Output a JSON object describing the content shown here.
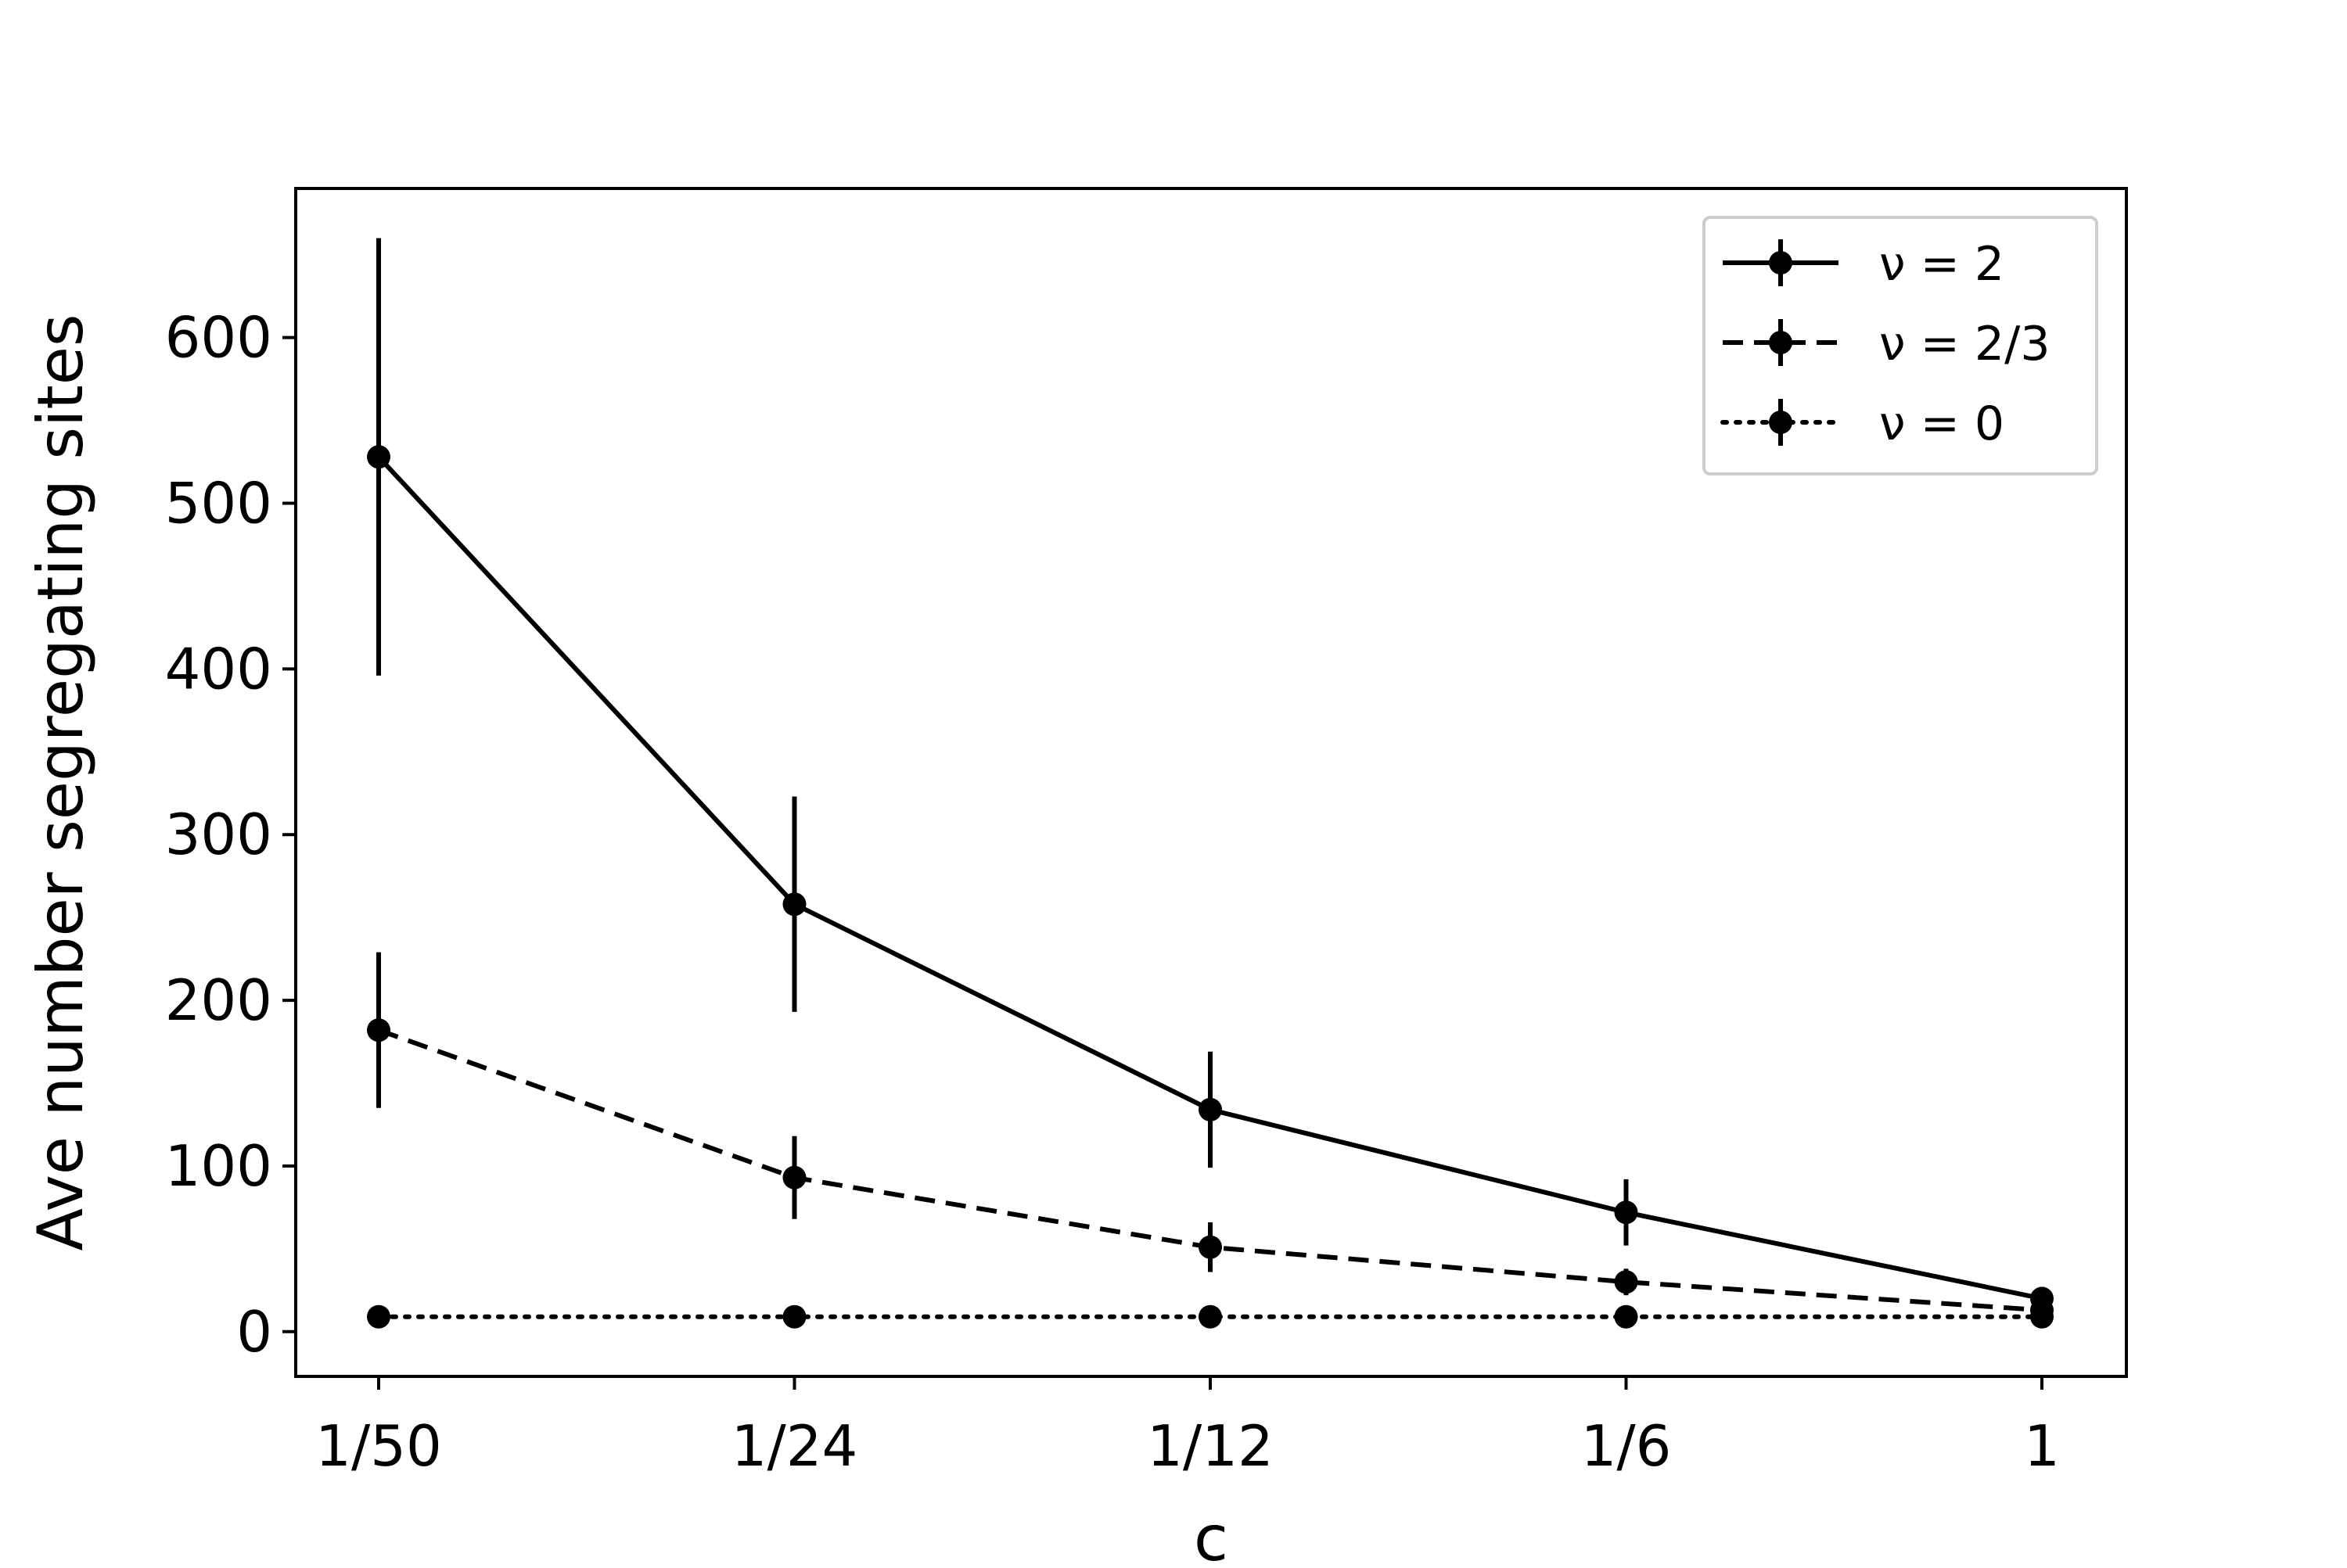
{
  "chart_data": {
    "type": "line",
    "xlabel": "c",
    "ylabel": "Ave number segregating sites",
    "categories": [
      "1/50",
      "1/24",
      "1/12",
      "1/6",
      "1"
    ],
    "ylim": [
      -27,
      690
    ],
    "yticks": [
      0,
      100,
      200,
      300,
      400,
      500,
      600
    ],
    "grid": false,
    "legend_position": "top-right",
    "error_bars": true,
    "series": [
      {
        "name": "ν = 2",
        "line_style": "solid",
        "values": [
          528,
          258,
          134,
          72,
          20
        ],
        "errors": [
          132,
          65,
          35,
          20,
          2
        ]
      },
      {
        "name": "ν = 2/3",
        "line_style": "dashed",
        "values": [
          182,
          93,
          51,
          30,
          13
        ],
        "errors": [
          47,
          25,
          15,
          8,
          2
        ]
      },
      {
        "name": "ν = 0",
        "line_style": "dotted",
        "values": [
          9,
          9,
          9,
          9,
          9
        ],
        "errors": [
          0,
          0,
          0,
          0,
          0
        ]
      }
    ]
  }
}
